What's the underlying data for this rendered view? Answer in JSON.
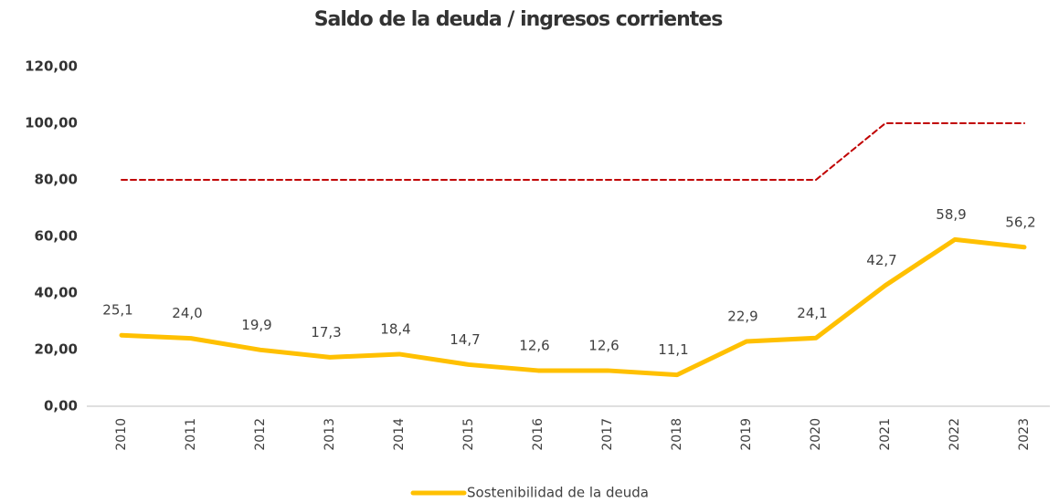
{
  "chart_data": {
    "type": "line",
    "title": "Saldo de la deuda / ingresos corrientes",
    "categories": [
      "2010",
      "2011",
      "2012",
      "2013",
      "2014",
      "2015",
      "2016",
      "2017",
      "2018",
      "2019",
      "2020",
      "2021",
      "2022",
      "2023"
    ],
    "series": [
      {
        "name": "Sostenibilidad de la deuda",
        "color": "#ffc000",
        "values": [
          25.1,
          24.0,
          19.9,
          17.3,
          18.4,
          14.7,
          12.6,
          12.6,
          11.1,
          22.9,
          24.1,
          42.7,
          58.9,
          56.2
        ],
        "value_labels": [
          "25,1",
          "24,0",
          "19,9",
          "17,3",
          "18,4",
          "14,7",
          "12,6",
          "12,6",
          "11,1",
          "22,9",
          "24,1",
          "42,7",
          "58,9",
          "56,2"
        ]
      },
      {
        "color": "#c00000",
        "dashed": true,
        "values": [
          80,
          80,
          80,
          80,
          80,
          80,
          80,
          80,
          80,
          80,
          80,
          100,
          100,
          100
        ]
      }
    ],
    "ylim": [
      0,
      120
    ],
    "yticks": [
      {
        "value": 0,
        "label": "0,00"
      },
      {
        "value": 20,
        "label": "20,00"
      },
      {
        "value": 40,
        "label": "40,00"
      },
      {
        "value": 60,
        "label": "60,00"
      },
      {
        "value": 80,
        "label": "80,00"
      },
      {
        "value": 100,
        "label": "100,00"
      },
      {
        "value": 120,
        "label": "120,00"
      }
    ],
    "grid": false,
    "legend": "bottom"
  }
}
